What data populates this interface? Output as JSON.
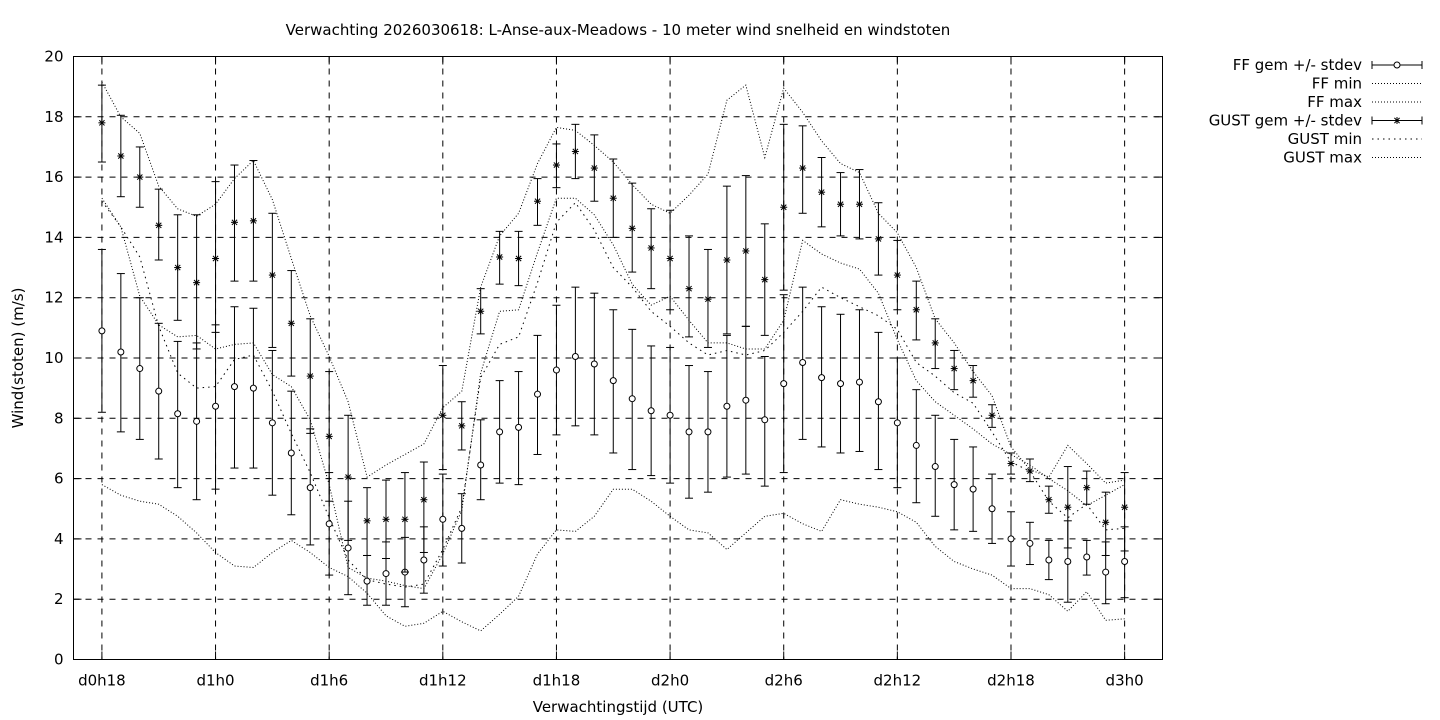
{
  "chart_data": {
    "type": "line",
    "title": "Verwachting 2026030618: L-Anse-aux-Meadows - 10 meter wind snelheid en windstoten",
    "xlabel": "Verwachtingstijd (UTC)",
    "ylabel": "Wind(stoten) (m/s)",
    "ylim": [
      0,
      20
    ],
    "xlim_hours": [
      -1.5,
      56
    ],
    "grid": true,
    "legend_position": "outside-right",
    "x_ticks": [
      {
        "h": 0,
        "label": "d0h18"
      },
      {
        "h": 6,
        "label": "d1h0"
      },
      {
        "h": 12,
        "label": "d1h6"
      },
      {
        "h": 18,
        "label": "d1h12"
      },
      {
        "h": 24,
        "label": "d1h18"
      },
      {
        "h": 30,
        "label": "d2h0"
      },
      {
        "h": 36,
        "label": "d2h6"
      },
      {
        "h": 42,
        "label": "d2h12"
      },
      {
        "h": 48,
        "label": "d2h18"
      },
      {
        "h": 54,
        "label": "d3h0"
      }
    ],
    "y_ticks": [
      0,
      2,
      4,
      6,
      8,
      10,
      12,
      14,
      16,
      18,
      20
    ],
    "x_hours": [
      0,
      1,
      2,
      3,
      4,
      5,
      6,
      7,
      8,
      9,
      10,
      11,
      12,
      13,
      14,
      15,
      16,
      17,
      18,
      19,
      20,
      21,
      22,
      23,
      24,
      25,
      26,
      27,
      28,
      29,
      30,
      31,
      32,
      33,
      34,
      35,
      36,
      37,
      38,
      39,
      40,
      41,
      42,
      43,
      44,
      45,
      46,
      47,
      48,
      49,
      50,
      51,
      52,
      53,
      54
    ],
    "series": [
      {
        "name": "FF gem +/- stdev",
        "style": "errorbar-circle",
        "mean": [
          10.9,
          10.2,
          9.65,
          8.9,
          8.15,
          7.9,
          8.4,
          9.05,
          9.0,
          7.85,
          6.85,
          5.7,
          4.5,
          3.7,
          2.6,
          2.85,
          2.9,
          3.3,
          4.65,
          4.35,
          6.45,
          7.55,
          7.7,
          8.8,
          9.6,
          10.05,
          9.8,
          9.25,
          8.65,
          8.25,
          8.1,
          7.55,
          7.55,
          8.4,
          8.6,
          7.95,
          9.15,
          9.85,
          9.35,
          9.15,
          9.2,
          8.55,
          7.85,
          7.1,
          6.4,
          5.8,
          5.65,
          5.0,
          4.0,
          3.85,
          3.3,
          3.25,
          3.4,
          2.9,
          3.25
        ],
        "low": [
          8.2,
          7.55,
          7.3,
          6.65,
          5.7,
          5.3,
          5.65,
          6.35,
          6.35,
          5.45,
          4.8,
          3.8,
          2.8,
          2.15,
          1.8,
          1.8,
          1.75,
          2.2,
          3.1,
          3.2,
          5.3,
          5.85,
          5.8,
          6.8,
          7.45,
          7.75,
          7.45,
          6.85,
          6.3,
          6.1,
          5.85,
          5.35,
          5.55,
          6.05,
          6.15,
          5.75,
          6.2,
          7.3,
          7.05,
          6.85,
          6.9,
          6.3,
          5.7,
          5.2,
          4.75,
          4.3,
          4.25,
          3.85,
          3.1,
          3.15,
          2.65,
          1.9,
          2.8,
          1.85,
          2.05
        ],
        "high": [
          13.6,
          12.8,
          12.0,
          11.15,
          10.55,
          10.5,
          11.1,
          11.7,
          11.65,
          10.25,
          8.9,
          7.65,
          6.2,
          5.25,
          3.45,
          3.9,
          4.05,
          4.4,
          6.15,
          5.5,
          7.95,
          9.25,
          9.55,
          10.75,
          11.75,
          12.35,
          12.15,
          11.6,
          10.95,
          10.4,
          10.35,
          9.75,
          9.55,
          10.75,
          11.05,
          10.05,
          12.1,
          12.35,
          11.7,
          11.45,
          11.6,
          10.85,
          10.0,
          8.95,
          8.1,
          7.3,
          7.05,
          6.15,
          4.9,
          4.55,
          3.95,
          4.6,
          3.95,
          3.9,
          4.4
        ]
      },
      {
        "name": "FF min",
        "style": "dotted",
        "values": [
          5.8,
          5.45,
          5.25,
          5.15,
          4.75,
          4.2,
          3.55,
          3.1,
          3.05,
          3.55,
          3.95,
          3.55,
          3.05,
          2.75,
          2.2,
          1.45,
          1.1,
          1.2,
          1.6,
          1.25,
          0.95,
          1.5,
          2.1,
          3.5,
          4.3,
          4.25,
          4.75,
          5.65,
          5.65,
          5.25,
          4.75,
          4.3,
          4.2,
          3.65,
          4.2,
          4.75,
          4.85,
          4.5,
          4.25,
          5.3,
          5.15,
          5.05,
          4.9,
          4.55,
          3.75,
          3.25,
          3.0,
          2.8,
          2.35,
          2.35,
          2.15,
          1.6,
          2.25,
          1.3,
          1.35
        ]
      },
      {
        "name": "FF max",
        "style": "dotted",
        "values": [
          15.3,
          14.35,
          12.05,
          11.1,
          10.7,
          10.75,
          10.3,
          10.45,
          10.5,
          9.45,
          9.05,
          7.95,
          5.8,
          3.05,
          2.7,
          2.6,
          2.45,
          2.35,
          3.5,
          4.95,
          9.5,
          11.55,
          11.6,
          13.5,
          15.3,
          15.3,
          14.75,
          13.75,
          12.45,
          11.75,
          12.05,
          11.25,
          10.5,
          10.5,
          10.3,
          10.3,
          11.25,
          13.9,
          13.45,
          13.15,
          12.95,
          12.15,
          10.6,
          9.25,
          8.55,
          8.1,
          7.65,
          7.15,
          6.8,
          6.45,
          6.0,
          5.6,
          5.1,
          5.45,
          5.8
        ]
      },
      {
        "name": "GUST gem +/- stdev",
        "style": "errorbar-star",
        "mean": [
          17.8,
          16.7,
          16.0,
          14.4,
          13.0,
          12.5,
          13.3,
          14.5,
          14.55,
          12.75,
          11.15,
          9.4,
          7.4,
          6.05,
          4.6,
          4.65,
          4.65,
          5.3,
          8.1,
          7.75,
          11.55,
          13.35,
          13.3,
          15.2,
          16.4,
          16.85,
          16.3,
          15.3,
          14.3,
          13.65,
          13.3,
          12.3,
          11.95,
          13.25,
          13.55,
          12.6,
          15.0,
          16.3,
          15.5,
          15.1,
          15.1,
          13.95,
          12.75,
          11.6,
          10.5,
          9.65,
          9.25,
          8.1,
          6.5,
          6.25,
          5.3,
          5.05,
          5.7,
          4.55,
          5.05
        ],
        "low": [
          16.5,
          15.35,
          15.0,
          13.25,
          11.25,
          10.3,
          10.85,
          12.55,
          12.55,
          10.35,
          9.4,
          7.5,
          5.25,
          3.95,
          3.45,
          3.35,
          2.9,
          3.55,
          6.3,
          6.95,
          10.8,
          12.45,
          12.4,
          14.4,
          15.65,
          15.95,
          15.2,
          14.0,
          12.85,
          12.3,
          11.6,
          10.7,
          10.35,
          10.8,
          11.05,
          10.75,
          12.25,
          14.8,
          14.35,
          14.05,
          13.95,
          12.75,
          11.6,
          10.6,
          9.65,
          8.95,
          8.7,
          7.7,
          6.15,
          5.9,
          4.85,
          3.7,
          5.15,
          3.45,
          3.6
        ],
        "high": [
          19.05,
          18.05,
          17.0,
          15.6,
          14.75,
          14.75,
          15.85,
          16.4,
          16.55,
          14.8,
          12.9,
          11.3,
          9.55,
          8.1,
          5.7,
          5.95,
          6.2,
          6.55,
          9.75,
          8.55,
          12.3,
          14.2,
          14.2,
          15.95,
          17.1,
          17.75,
          17.4,
          16.6,
          15.8,
          14.95,
          14.9,
          14.05,
          13.6,
          15.7,
          16.05,
          14.45,
          17.75,
          17.7,
          16.65,
          16.15,
          16.25,
          15.15,
          13.9,
          12.55,
          11.3,
          10.25,
          9.75,
          8.45,
          6.85,
          6.65,
          5.75,
          6.4,
          6.25,
          5.55,
          6.2
        ]
      },
      {
        "name": "GUST min",
        "style": "dotted-sparse",
        "values": [
          15.2,
          14.35,
          13.35,
          11.05,
          9.5,
          9.0,
          9.05,
          9.95,
          10.1,
          8.9,
          7.5,
          6.2,
          4.7,
          3.3,
          2.65,
          2.5,
          2.4,
          2.5,
          3.65,
          5.05,
          9.35,
          10.45,
          10.7,
          12.5,
          14.5,
          15.15,
          14.25,
          13.0,
          12.35,
          11.55,
          11.05,
          10.5,
          10.1,
          10.25,
          10.1,
          10.25,
          10.85,
          11.55,
          12.35,
          12.0,
          11.7,
          11.4,
          10.95,
          9.85,
          9.4,
          8.85,
          8.5,
          7.55,
          6.55,
          6.25,
          5.25,
          4.7,
          5.15,
          4.3,
          4.35
        ]
      },
      {
        "name": "GUST max",
        "style": "dotted",
        "values": [
          19.15,
          18.0,
          17.45,
          15.7,
          14.95,
          14.7,
          15.1,
          15.95,
          16.55,
          15.25,
          13.3,
          11.4,
          10.05,
          8.55,
          6.05,
          6.45,
          6.8,
          7.15,
          8.35,
          8.9,
          12.35,
          14.05,
          14.8,
          16.45,
          17.65,
          17.55,
          17.05,
          16.5,
          15.75,
          15.1,
          14.8,
          15.4,
          16.1,
          18.55,
          19.05,
          16.65,
          18.95,
          18.15,
          17.2,
          16.45,
          16.15,
          14.8,
          14.15,
          13.0,
          11.3,
          10.5,
          9.55,
          8.75,
          7.05,
          6.3,
          6.05,
          7.1,
          6.5,
          5.85,
          5.95
        ]
      }
    ]
  }
}
